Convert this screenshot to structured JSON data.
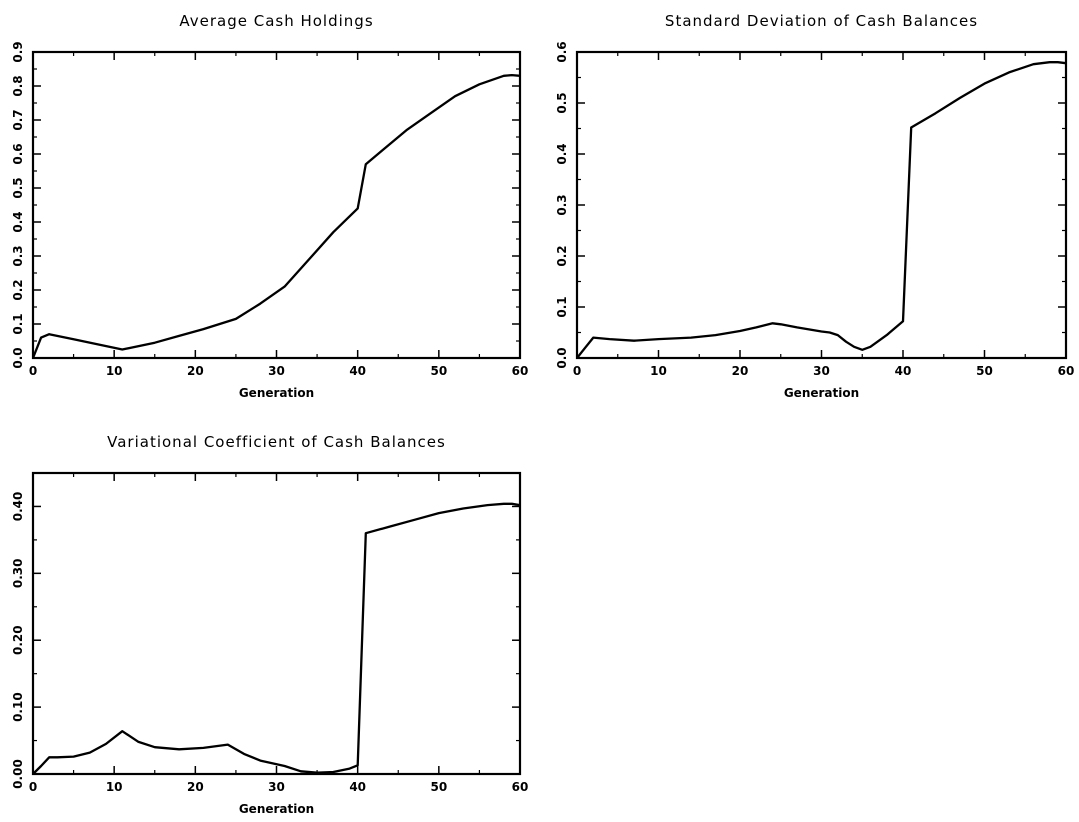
{
  "chart_data": [
    {
      "type": "line",
      "title": "Average Cash Holdings",
      "xlabel": "Generation",
      "ylabel": "",
      "xlim": [
        0,
        60
      ],
      "ylim": [
        0,
        0.9
      ],
      "xticks": [
        0,
        10,
        20,
        30,
        40,
        50,
        60
      ],
      "xtick_labels": [
        "0",
        "10",
        "20",
        "30",
        "40",
        "50",
        "60"
      ],
      "yticks": [
        0,
        0.1,
        0.2,
        0.3,
        0.4,
        0.5,
        0.6,
        0.7,
        0.8,
        0.9
      ],
      "ytick_labels": [
        "0.0",
        "0.1",
        "0.2",
        "0.3",
        "0.4",
        "0.5",
        "0.6",
        "0.7",
        "0.8",
        "0.9"
      ],
      "grid": false,
      "series": [
        {
          "x": [
            0,
            1,
            2,
            5,
            8,
            11,
            15,
            18,
            21,
            25,
            28,
            31,
            34,
            37,
            40,
            41,
            43,
            46,
            49,
            52,
            55,
            58,
            59,
            60
          ],
          "y": [
            0,
            0.06,
            0.07,
            0.055,
            0.04,
            0.025,
            0.045,
            0.065,
            0.085,
            0.115,
            0.16,
            0.21,
            0.29,
            0.37,
            0.44,
            0.57,
            0.61,
            0.67,
            0.72,
            0.77,
            0.805,
            0.83,
            0.832,
            0.83
          ]
        }
      ]
    },
    {
      "type": "line",
      "title": "Standard Deviation of Cash Balances",
      "xlabel": "Generation",
      "ylabel": "",
      "xlim": [
        0,
        60
      ],
      "ylim": [
        0,
        0.6
      ],
      "xticks": [
        0,
        10,
        20,
        30,
        40,
        50,
        60
      ],
      "xtick_labels": [
        "0",
        "10",
        "20",
        "30",
        "40",
        "50",
        "60"
      ],
      "yticks": [
        0,
        0.1,
        0.2,
        0.3,
        0.4,
        0.5,
        0.6
      ],
      "ytick_labels": [
        "0.0",
        "0.1",
        "0.2",
        "0.3",
        "0.4",
        "0.5",
        "0.6"
      ],
      "grid": false,
      "series": [
        {
          "x": [
            0,
            1,
            2,
            4,
            7,
            10,
            14,
            17,
            20,
            22,
            24,
            25,
            27,
            30,
            31,
            32,
            33,
            34,
            35,
            36,
            38,
            40,
            41,
            44,
            47,
            50,
            53,
            56,
            58,
            59,
            60
          ],
          "y": [
            0,
            0.02,
            0.04,
            0.037,
            0.034,
            0.037,
            0.04,
            0.045,
            0.053,
            0.06,
            0.068,
            0.066,
            0.06,
            0.052,
            0.05,
            0.045,
            0.032,
            0.022,
            0.016,
            0.022,
            0.045,
            0.072,
            0.452,
            0.48,
            0.51,
            0.538,
            0.56,
            0.576,
            0.58,
            0.58,
            0.578
          ]
        }
      ]
    },
    {
      "type": "line",
      "title": "Variational Coefficient of Cash Balances",
      "xlabel": "Generation",
      "ylabel": "",
      "xlim": [
        0,
        60
      ],
      "ylim": [
        0,
        0.45
      ],
      "xticks": [
        0,
        10,
        20,
        30,
        40,
        50,
        60
      ],
      "xtick_labels": [
        "0",
        "10",
        "20",
        "30",
        "40",
        "50",
        "60"
      ],
      "yticks": [
        0,
        0.1,
        0.2,
        0.3,
        0.4
      ],
      "ytick_labels": [
        "0.00",
        "0.10",
        "0.20",
        "0.30",
        "0.40"
      ],
      "grid": false,
      "series": [
        {
          "x": [
            0,
            1,
            2,
            3,
            5,
            7,
            9,
            11,
            13,
            15,
            18,
            21,
            24,
            26,
            28,
            31,
            33,
            35,
            37,
            39,
            40,
            41,
            44,
            47,
            50,
            53,
            56,
            58,
            59,
            60
          ],
          "y": [
            0,
            0.012,
            0.025,
            0.025,
            0.026,
            0.032,
            0.045,
            0.064,
            0.048,
            0.04,
            0.037,
            0.039,
            0.044,
            0.03,
            0.02,
            0.012,
            0.004,
            0.002,
            0.003,
            0.008,
            0.013,
            0.36,
            0.37,
            0.38,
            0.39,
            0.397,
            0.402,
            0.404,
            0.404,
            0.402
          ]
        }
      ]
    }
  ]
}
